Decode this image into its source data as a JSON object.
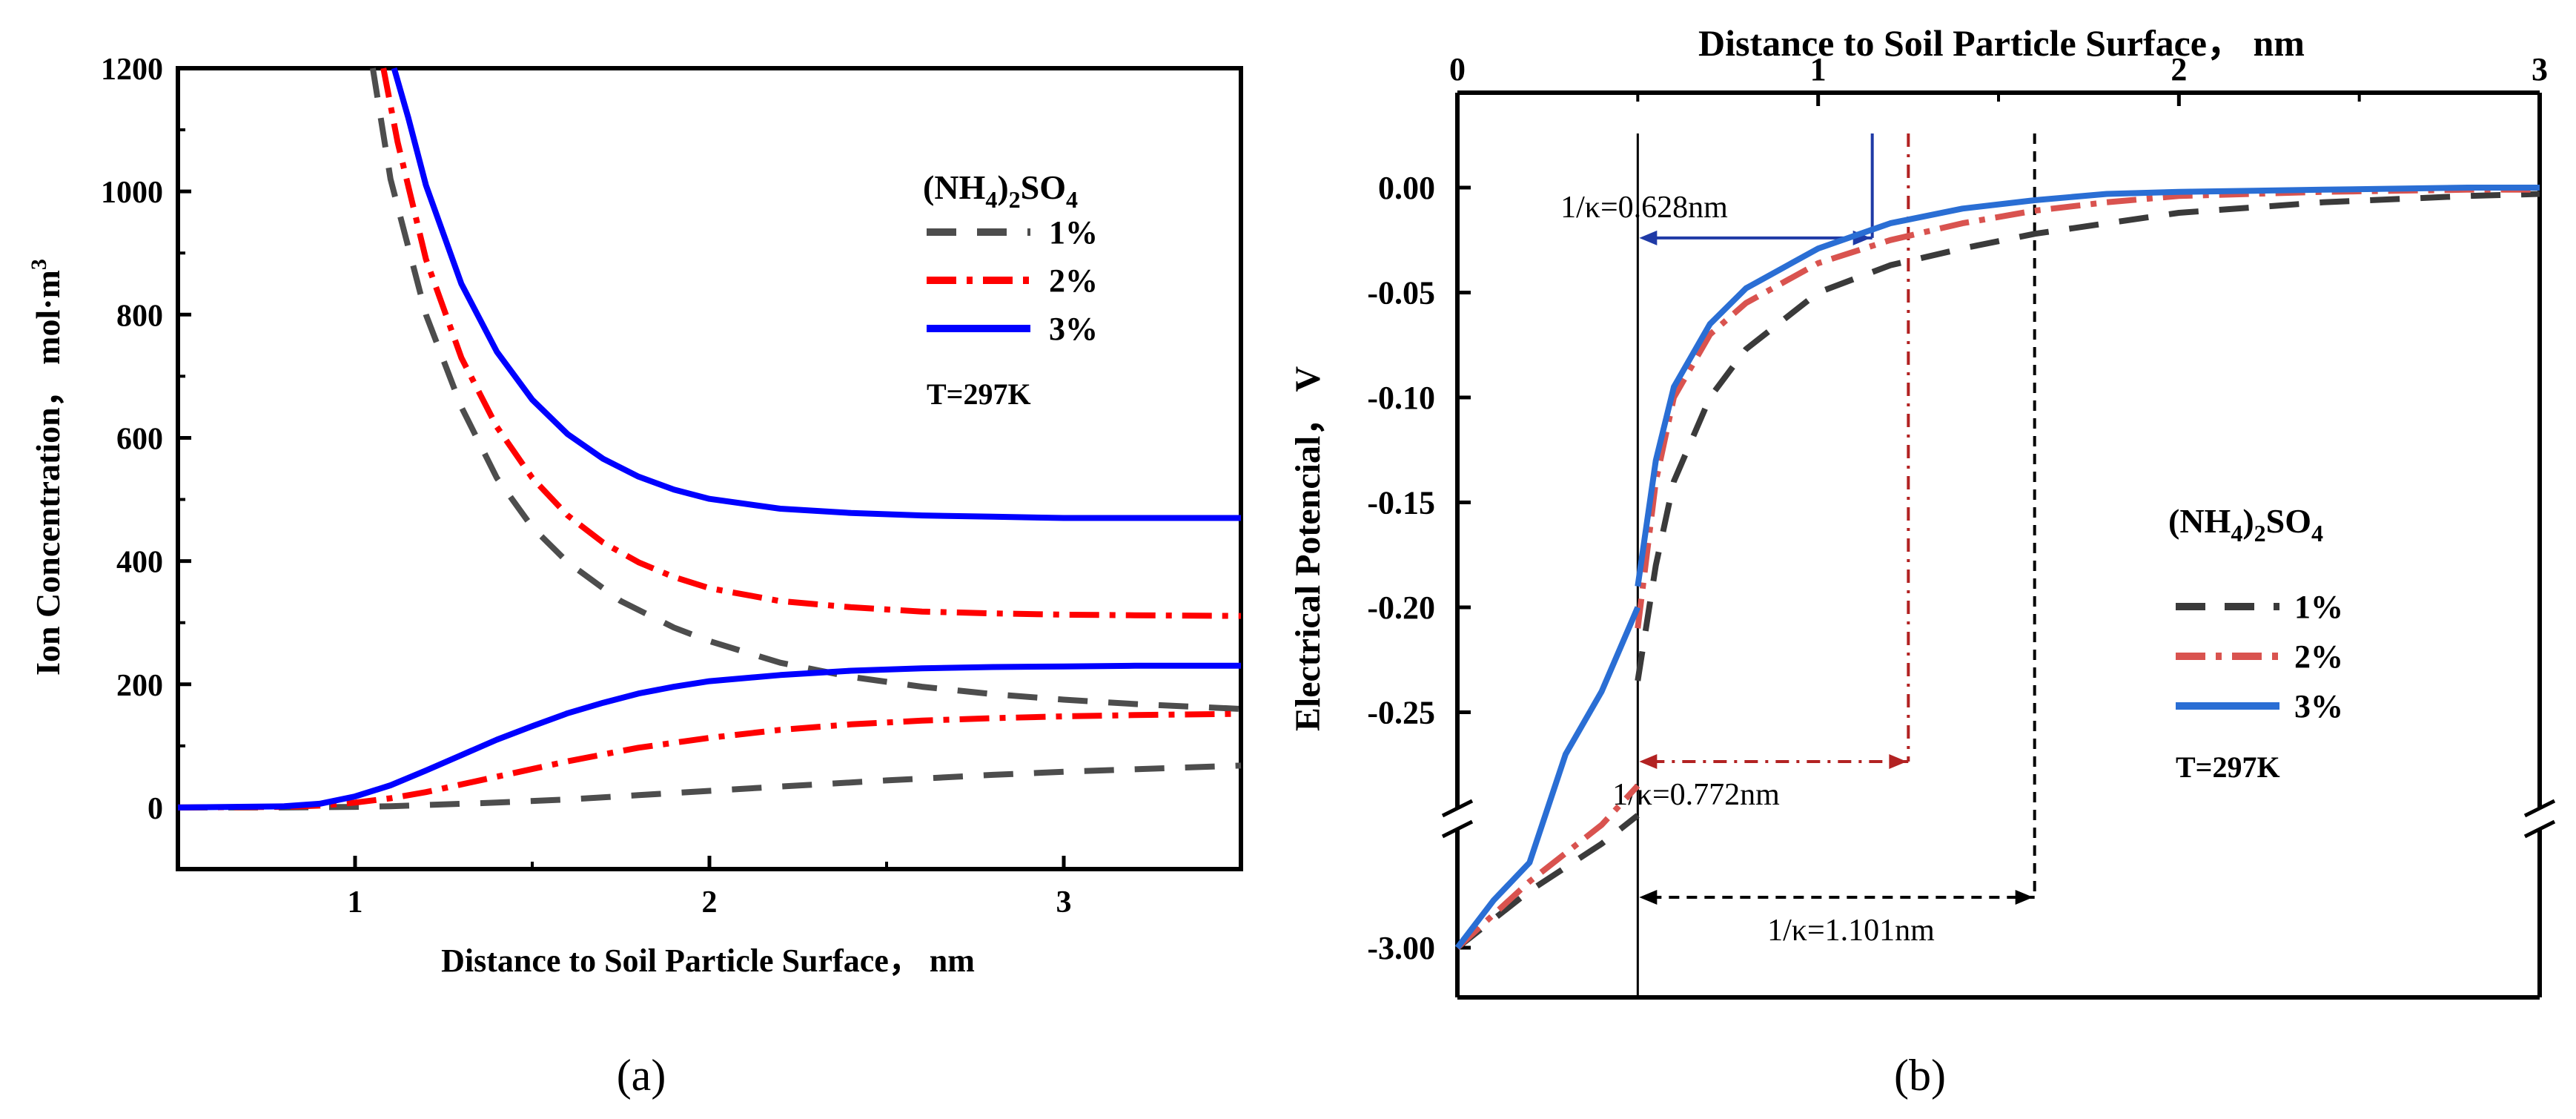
{
  "chart_data": [
    {
      "panel_label": "(a)",
      "type": "line",
      "xlabel": "Distance to Soil Particle Surface， nm",
      "ylabel": "Ion Concentration， mol·m",
      "ylabel_sup": "3",
      "xlim": [
        0.5,
        3.5
      ],
      "ylim": [
        -100,
        1200
      ],
      "xticks": [
        1,
        2,
        3
      ],
      "yticks": [
        0,
        200,
        400,
        600,
        800,
        1000,
        1200
      ],
      "legend": {
        "title_main": "(NH",
        "title_sub1": "4",
        "title_mid": ")",
        "title_sub2": "2",
        "title_tail": "SO",
        "title_sub3": "4",
        "entries": [
          "1%",
          "2%",
          "3%"
        ],
        "note": "T=297K",
        "placement": "top-right"
      },
      "series": [
        {
          "name": "1%",
          "color": "#4d4d4d",
          "style": "dash",
          "upper": {
            "x": [
              1.05,
              1.1,
              1.2,
              1.3,
              1.4,
              1.5,
              1.6,
              1.75,
              1.9,
              2.0,
              2.2,
              2.4,
              2.6,
              2.8,
              3.0,
              3.2,
              3.5
            ],
            "y": [
              1200,
              1020,
              800,
              650,
              535,
              455,
              398,
              335,
              292,
              270,
              235,
              212,
              196,
              184,
              175,
              168,
              160
            ]
          },
          "lower": {
            "x": [
              0.5,
              0.8,
              1.0,
              1.1,
              1.2,
              1.4,
              1.6,
              1.8,
              2.0,
              2.2,
              2.5,
              2.8,
              3.0,
              3.2,
              3.5
            ],
            "y": [
              0,
              0,
              1,
              2,
              4,
              8,
              13,
              20,
              27,
              34,
              44,
              53,
              58,
              62,
              68
            ]
          }
        },
        {
          "name": "2%",
          "color": "#ff0000",
          "style": "dashdot",
          "upper": {
            "x": [
              1.08,
              1.12,
              1.2,
              1.3,
              1.4,
              1.5,
              1.6,
              1.7,
              1.8,
              1.9,
              2.0,
              2.2,
              2.4,
              2.6,
              2.8,
              3.0,
              3.2,
              3.5
            ],
            "y": [
              1200,
              1080,
              890,
              730,
              618,
              535,
              474,
              430,
              398,
              374,
              356,
              335,
              325,
              318,
              315,
              313,
              312,
              311
            ]
          },
          "lower": {
            "x": [
              0.5,
              0.8,
              0.9,
              1.0,
              1.1,
              1.2,
              1.4,
              1.6,
              1.8,
              2.0,
              2.2,
              2.4,
              2.6,
              2.8,
              3.0,
              3.2,
              3.5
            ],
            "y": [
              0,
              1,
              3,
              8,
              15,
              25,
              50,
              75,
              97,
              113,
              126,
              135,
              141,
              145,
              148,
              150,
              152
            ]
          }
        },
        {
          "name": "3%",
          "color": "#0000ff",
          "style": "solid",
          "upper": {
            "x": [
              1.11,
              1.15,
              1.2,
              1.3,
              1.4,
              1.5,
              1.6,
              1.7,
              1.8,
              1.9,
              2.0,
              2.2,
              2.4,
              2.6,
              2.8,
              3.0,
              3.2,
              3.5
            ],
            "y": [
              1200,
              1120,
              1010,
              850,
              740,
              662,
              606,
              566,
              537,
              516,
              501,
              485,
              478,
              474,
              472,
              470,
              470,
              470
            ]
          },
          "lower": {
            "x": [
              0.5,
              0.8,
              0.9,
              1.0,
              1.1,
              1.2,
              1.3,
              1.4,
              1.5,
              1.6,
              1.7,
              1.8,
              1.9,
              2.0,
              2.2,
              2.4,
              2.6,
              2.8,
              3.0,
              3.2,
              3.5
            ],
            "y": [
              0,
              2,
              6,
              18,
              36,
              60,
              85,
              110,
              132,
              153,
              170,
              185,
              196,
              205,
              215,
              222,
              226,
              228,
              229,
              230,
              230
            ]
          }
        }
      ]
    },
    {
      "panel_label": "(b)",
      "type": "line",
      "xlabel": "Distance to Soil Particle Surface， nm",
      "xaxis_position": "top",
      "ylabel": "Electrical Potencial， V",
      "xlim": [
        0,
        3
      ],
      "ylim_upper": [
        -0.3,
        0.02
      ],
      "ylim_broken_bottom": -3.0,
      "xticks": [
        0,
        1,
        2,
        3
      ],
      "yticks": [
        "0.00",
        "-0.05",
        "-0.10",
        "-0.15",
        "-0.20",
        "-0.25",
        "-3.00"
      ],
      "surface_line_x": 0.5,
      "legend": {
        "title_main": "(NH",
        "title_sub1": "4",
        "title_mid": ")",
        "title_sub2": "2",
        "title_tail": "SO",
        "title_sub3": "4",
        "entries": [
          "1%",
          "2%",
          "3%"
        ],
        "note": "T=297K",
        "placement": "right"
      },
      "annotations": [
        {
          "text": "1/κ=0.628nm",
          "x_start": 0.5,
          "x_end": 1.15,
          "y": -0.024,
          "color": "#1f3aa6"
        },
        {
          "text": "1/κ=0.772nm",
          "x_start": 0.5,
          "x_end": 1.25,
          "y": -0.275,
          "color": "#b22222"
        },
        {
          "text": "1/κ=1.101nm",
          "x_start": 0.5,
          "x_end": 1.6,
          "y": -3.0,
          "color": "#000000"
        }
      ],
      "series": [
        {
          "name": "1%",
          "color": "#3a3a3a",
          "style": "dash",
          "lower_segment": {
            "x": [
              0.0,
              0.2,
              0.4,
              0.5
            ],
            "y": [
              -3.0,
              -2.7,
              -2.45,
              -2.3
            ]
          },
          "upper_segment": {
            "x": [
              0.5,
              0.55,
              0.6,
              0.7,
              0.8,
              1.0,
              1.2,
              1.4,
              1.6,
              1.8,
              2.0,
              2.4,
              2.8,
              3.0
            ],
            "y": [
              -0.235,
              -0.18,
              -0.14,
              -0.1,
              -0.077,
              -0.05,
              -0.037,
              -0.029,
              -0.022,
              -0.017,
              -0.012,
              -0.007,
              -0.004,
              -0.003
            ]
          }
        },
        {
          "name": "2%",
          "color": "#d9534f",
          "style": "dashdot",
          "lower_segment": {
            "x": [
              0.0,
              0.2,
              0.4,
              0.5
            ],
            "y": [
              -3.0,
              -2.65,
              -2.35,
              -0.285
            ]
          },
          "upper_segment": {
            "x": [
              0.5,
              0.55,
              0.6,
              0.7,
              0.8,
              1.0,
              1.2,
              1.4,
              1.6,
              1.8,
              2.0,
              2.4,
              2.8,
              3.0
            ],
            "y": [
              -0.21,
              -0.14,
              -0.1,
              -0.07,
              -0.055,
              -0.036,
              -0.025,
              -0.017,
              -0.011,
              -0.007,
              -0.004,
              -0.002,
              -0.001,
              -0.001
            ]
          }
        },
        {
          "name": "3%",
          "color": "#2a6ed4",
          "style": "solid",
          "lower_segment": {
            "x": [
              0.0,
              0.1,
              0.2,
              0.3,
              0.4,
              0.5
            ],
            "y": [
              -3.0,
              -2.75,
              -2.55,
              -0.27,
              -0.24,
              -0.2
            ]
          },
          "upper_segment": {
            "x": [
              0.5,
              0.55,
              0.6,
              0.7,
              0.8,
              1.0,
              1.2,
              1.4,
              1.6,
              1.8,
              2.0,
              2.4,
              2.8,
              3.0
            ],
            "y": [
              -0.19,
              -0.13,
              -0.095,
              -0.065,
              -0.048,
              -0.029,
              -0.017,
              -0.01,
              -0.006,
              -0.003,
              -0.002,
              -0.001,
              0.0,
              0.0
            ]
          }
        }
      ]
    }
  ]
}
